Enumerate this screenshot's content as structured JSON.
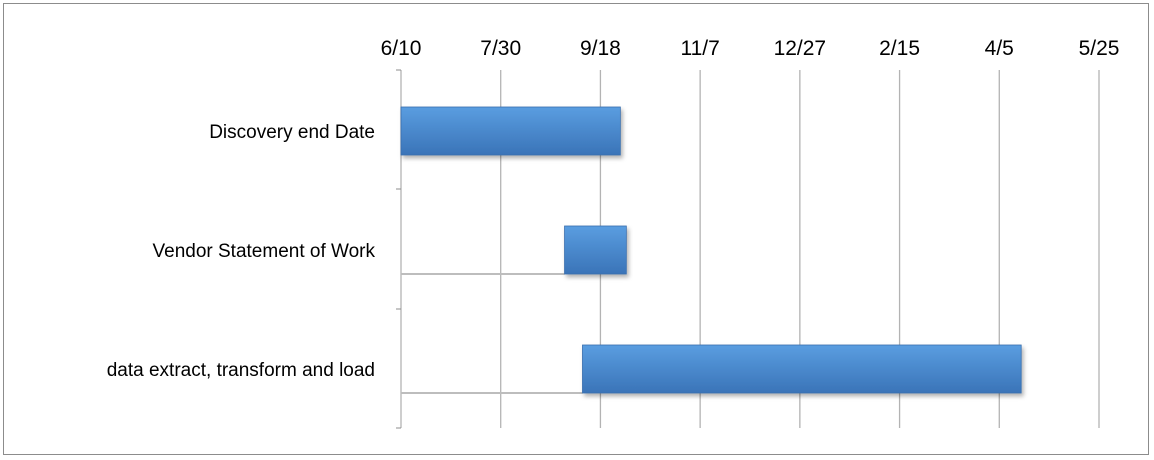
{
  "chart_data": {
    "type": "bar",
    "orientation": "horizontal",
    "stacked": true,
    "x_axis": {
      "position": "top",
      "tick_labels": [
        "6/10",
        "7/30",
        "9/18",
        "11/7",
        "12/27",
        "2/15",
        "4/5",
        "5/25"
      ],
      "tick_step_days": 50,
      "range_days": [
        0,
        350
      ],
      "grid": true
    },
    "categories": [
      "Discovery end Date",
      "Vendor Statement of Work ",
      "data extract, transform and load"
    ],
    "series": [
      {
        "role": "start-offset",
        "visible": false,
        "values_days": [
          0,
          82,
          91
        ]
      },
      {
        "role": "duration",
        "visible": true,
        "color": "#4a8fd4",
        "values_days": [
          110,
          31,
          220
        ]
      }
    ],
    "colors": {
      "bar_top": "#5a9de0",
      "bar_bottom": "#3a74b8",
      "grid": "#b3b3b3",
      "axis": "#8c8c8c"
    }
  }
}
